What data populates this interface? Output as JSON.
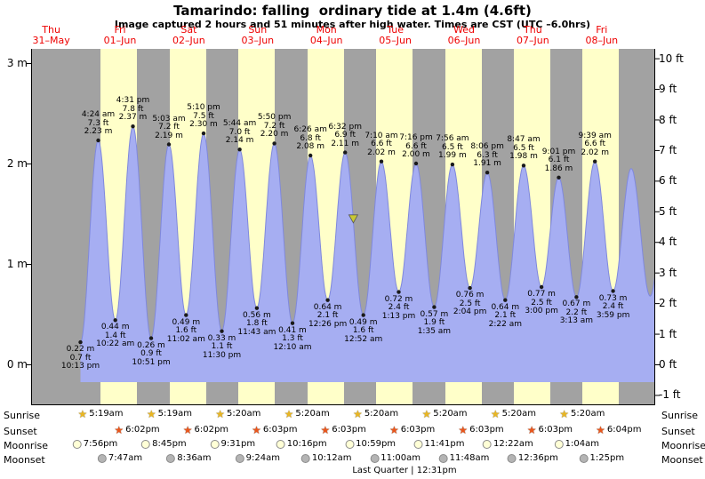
{
  "header": {
    "title": "Tamarindo: falling  ordinary tide at 1.4m (4.6ft)",
    "subtitle": "Image captured 2 hours and 51 minutes after high water. Times are CST (UTC –6.0hrs)"
  },
  "colors": {
    "day_band": "#ffffc9",
    "night_bg": "#a2a2a2",
    "tide_fill": "#a6aef2",
    "tide_stroke": "#7f88dd",
    "date_red": "#ee0000",
    "marker": "#c9c832",
    "sunrise_icon": "#e9b622",
    "sunset_icon": "#e9561c",
    "moonrise_icon": "#ffffd6",
    "moonset_icon": "#b4b4b4",
    "moon_border": "#8a8a8a",
    "dot": "#1a1a1a"
  },
  "chart_data": {
    "type": "area",
    "title": "Tamarindo: falling ordinary tide at 1.4m (4.6ft)",
    "ylabel_left": "m",
    "ylabel_right": "ft",
    "ylim_m": [
      -0.42,
      3.14
    ],
    "x_range_hours_from_31_may_midnight": [
      5,
      222.6
    ],
    "days": [
      {
        "dow": "Thu",
        "date": "31–May"
      },
      {
        "dow": "Fri",
        "date": "01–Jun"
      },
      {
        "dow": "Sat",
        "date": "02–Jun"
      },
      {
        "dow": "Sun",
        "date": "03–Jun"
      },
      {
        "dow": "Mon",
        "date": "04–Jun"
      },
      {
        "dow": "Tue",
        "date": "05–Jun"
      },
      {
        "dow": "Wed",
        "date": "06–Jun"
      },
      {
        "dow": "Thu",
        "date": "07–Jun"
      },
      {
        "dow": "Fri",
        "date": "08–Jun"
      }
    ],
    "day_bands": [
      {
        "sunrise_t": 29.317,
        "sunset_t": 42.033
      },
      {
        "sunrise_t": 53.317,
        "sunset_t": 66.033
      },
      {
        "sunrise_t": 77.333,
        "sunset_t": 90.05
      },
      {
        "sunrise_t": 101.333,
        "sunset_t": 114.05
      },
      {
        "sunrise_t": 125.333,
        "sunset_t": 138.05
      },
      {
        "sunrise_t": 149.333,
        "sunset_t": 162.05
      },
      {
        "sunrise_t": 173.333,
        "sunset_t": 186.05
      },
      {
        "sunrise_t": 197.333,
        "sunset_t": 210.067
      }
    ],
    "tide_events": [
      {
        "t": 22.217,
        "type": "low",
        "m": 0.22,
        "ft": 0.7,
        "time": "10:13 pm"
      },
      {
        "t": 28.4,
        "type": "high",
        "m": 2.23,
        "ft": 7.3,
        "time": "4:24 am"
      },
      {
        "t": 34.367,
        "type": "low",
        "m": 0.44,
        "ft": 1.4,
        "time": "10:22 am"
      },
      {
        "t": 40.517,
        "type": "high",
        "m": 2.37,
        "ft": 7.8,
        "time": "4:31 pm"
      },
      {
        "t": 46.85,
        "type": "low",
        "m": 0.26,
        "ft": 0.9,
        "time": "10:51 pm"
      },
      {
        "t": 53.05,
        "type": "high",
        "m": 2.19,
        "ft": 7.2,
        "time": "5:03 am"
      },
      {
        "t": 59.033,
        "type": "low",
        "m": 0.49,
        "ft": 1.6,
        "time": "11:02 am"
      },
      {
        "t": 65.167,
        "type": "high",
        "m": 2.3,
        "ft": 7.5,
        "time": "5:10 pm"
      },
      {
        "t": 71.5,
        "type": "low",
        "m": 0.33,
        "ft": 1.1,
        "time": "11:30 pm"
      },
      {
        "t": 77.733,
        "type": "high",
        "m": 2.14,
        "ft": 7.0,
        "time": "5:44 am"
      },
      {
        "t": 83.717,
        "type": "low",
        "m": 0.56,
        "ft": 1.8,
        "time": "11:43 am"
      },
      {
        "t": 89.833,
        "type": "high",
        "m": 2.2,
        "ft": 7.2,
        "time": "5:50 pm"
      },
      {
        "t": 96.167,
        "type": "low",
        "m": 0.41,
        "ft": 1.3,
        "time": "12:10 am"
      },
      {
        "t": 102.433,
        "type": "high",
        "m": 2.08,
        "ft": 6.8,
        "time": "6:26 am"
      },
      {
        "t": 108.433,
        "type": "low",
        "m": 0.64,
        "ft": 2.1,
        "time": "12:26 pm"
      },
      {
        "t": 114.533,
        "type": "high",
        "m": 2.11,
        "ft": 6.9,
        "time": "6:32 pm"
      },
      {
        "t": 120.867,
        "type": "low",
        "m": 0.49,
        "ft": 1.6,
        "time": "12:52 am"
      },
      {
        "t": 127.167,
        "type": "high",
        "m": 2.02,
        "ft": 6.6,
        "time": "7:10 am"
      },
      {
        "t": 133.217,
        "type": "low",
        "m": 0.72,
        "ft": 2.4,
        "time": "1:13 pm"
      },
      {
        "t": 139.267,
        "type": "high",
        "m": 2.0,
        "ft": 6.6,
        "time": "7:16 pm"
      },
      {
        "t": 145.583,
        "type": "low",
        "m": 0.57,
        "ft": 1.9,
        "time": "1:35 am"
      },
      {
        "t": 151.933,
        "type": "high",
        "m": 1.99,
        "ft": 6.5,
        "time": "7:56 am"
      },
      {
        "t": 158.067,
        "type": "low",
        "m": 0.76,
        "ft": 2.5,
        "time": "2:04 pm"
      },
      {
        "t": 164.1,
        "type": "high",
        "m": 1.91,
        "ft": 6.3,
        "time": "8:06 pm"
      },
      {
        "t": 170.367,
        "type": "low",
        "m": 0.64,
        "ft": 2.1,
        "time": "2:22 am"
      },
      {
        "t": 176.783,
        "type": "high",
        "m": 1.98,
        "ft": 6.5,
        "time": "8:47 am"
      },
      {
        "t": 183.0,
        "type": "low",
        "m": 0.77,
        "ft": 2.5,
        "time": "3:00 pm"
      },
      {
        "t": 189.017,
        "type": "high",
        "m": 1.86,
        "ft": 6.1,
        "time": "9:01 pm"
      },
      {
        "t": 195.217,
        "type": "low",
        "m": 0.67,
        "ft": 2.2,
        "time": "3:13 am"
      },
      {
        "t": 201.65,
        "type": "high",
        "m": 2.02,
        "ft": 6.6,
        "time": "9:39 am"
      },
      {
        "t": 207.983,
        "type": "low",
        "m": 0.73,
        "ft": 2.4,
        "time": "3:59 pm"
      }
    ],
    "curve_tail": [
      {
        "t": 214.3,
        "m": 1.95
      },
      {
        "t": 220.9,
        "m": 0.68
      },
      {
        "t": 227.5,
        "m": 2.0
      }
    ],
    "marker": {
      "t": 117.38,
      "m": 1.4,
      "label_m": "1.4m",
      "label_ft": "4.6ft"
    },
    "y_ticks_left": [
      {
        "m": 3,
        "label": "3 m"
      },
      {
        "m": 2,
        "label": "2 m"
      },
      {
        "m": 1,
        "label": "1 m"
      },
      {
        "m": 0,
        "label": "0 m"
      }
    ],
    "y_ticks_right": [
      {
        "ft": 10,
        "label": "10 ft"
      },
      {
        "ft": 9,
        "label": "9 ft"
      },
      {
        "ft": 8,
        "label": "8 ft"
      },
      {
        "ft": 7,
        "label": "7 ft"
      },
      {
        "ft": 6,
        "label": "6 ft"
      },
      {
        "ft": 5,
        "label": "5 ft"
      },
      {
        "ft": 4,
        "label": "4 ft"
      },
      {
        "ft": 3,
        "label": "3 ft"
      },
      {
        "ft": 2,
        "label": "2 ft"
      },
      {
        "ft": 1,
        "label": "1 ft"
      },
      {
        "ft": 0,
        "label": "0 ft"
      },
      {
        "ft": -1,
        "label": "-1 ft"
      }
    ]
  },
  "almanac": {
    "rows": [
      {
        "name": "sunrise",
        "label": "Sunrise",
        "icon": "sunrise-icon",
        "values": [
          "5:19am",
          "5:19am",
          "5:20am",
          "5:20am",
          "5:20am",
          "5:20am",
          "5:20am",
          "5:20am"
        ]
      },
      {
        "name": "sunset",
        "label": "Sunset",
        "icon": "sunset-icon",
        "values": [
          "6:02pm",
          "6:02pm",
          "6:03pm",
          "6:03pm",
          "6:03pm",
          "6:03pm",
          "6:03pm",
          "6:04pm"
        ]
      },
      {
        "name": "moonrise",
        "label": "Moonrise",
        "icon": "moonrise-icon",
        "values": [
          "7:56pm",
          "8:45pm",
          "9:31pm",
          "10:16pm",
          "10:59pm",
          "11:41pm",
          "12:22am",
          "1:04am"
        ]
      },
      {
        "name": "moonset",
        "label": "Moonset",
        "icon": "moonset-icon",
        "values": [
          "7:47am",
          "8:36am",
          "9:24am",
          "10:12am",
          "11:00am",
          "11:48am",
          "12:36pm",
          "1:25pm"
        ]
      }
    ],
    "moon_phase": "Last Quarter | 12:31pm"
  }
}
